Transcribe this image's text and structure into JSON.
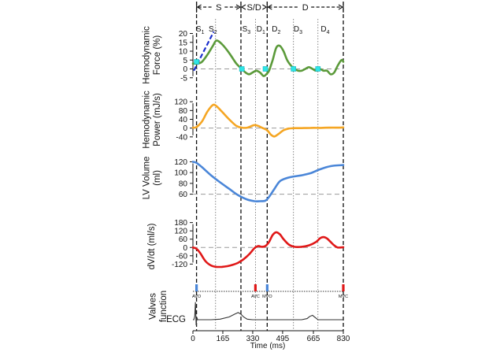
{
  "chart_data": {
    "type": "line",
    "xlabel": "Time (ms)",
    "x_ticks": [
      0,
      165,
      330,
      495,
      665,
      830
    ],
    "x_range": [
      0,
      830
    ],
    "phases": [
      {
        "label": "S",
        "start": 20,
        "end": 265
      },
      {
        "label": "S/D",
        "start": 265,
        "end": 410
      },
      {
        "label": "D",
        "start": 410,
        "end": 830
      }
    ],
    "subphases": [
      {
        "label": "S1",
        "x": 40
      },
      {
        "label": "S2",
        "x": 110
      },
      {
        "label": "S3",
        "x": 295
      },
      {
        "label": "D1",
        "x": 375
      },
      {
        "label": "D2",
        "x": 460
      },
      {
        "label": "D3",
        "x": 580
      },
      {
        "label": "D4",
        "x": 730
      }
    ],
    "phase_boundaries": [
      20,
      265,
      410
    ],
    "subphase_boundaries": [
      125,
      345,
      555,
      690
    ],
    "panels": [
      {
        "ylabel": "Hemodynamic Force (%)",
        "yticks": [
          -5,
          0,
          5,
          10,
          15,
          20
        ],
        "ylim": [
          -6,
          22
        ],
        "zero_line": 0,
        "color": "#5b9a3a",
        "series": {
          "x": [
            0,
            25,
            50,
            80,
            110,
            130,
            160,
            200,
            240,
            270,
            290,
            310,
            330,
            350,
            370,
            390,
            405,
            420,
            440,
            460,
            480,
            500,
            520,
            540,
            560,
            580,
            600,
            620,
            640,
            660,
            680,
            700,
            720,
            740,
            760,
            780,
            800,
            820,
            830
          ],
          "y": [
            3,
            3,
            4,
            8,
            13,
            16,
            14,
            9,
            3,
            0,
            -2,
            -3,
            -2,
            -1,
            -2,
            -4,
            -3,
            -1,
            5,
            12,
            13,
            10,
            5,
            2,
            0,
            -1,
            -1,
            0,
            1,
            0,
            -1,
            0,
            -1,
            -1,
            -3,
            -2,
            2,
            5,
            4
          ]
        },
        "markers": [
          {
            "x": 20,
            "y": 4
          },
          {
            "x": 270,
            "y": 0
          },
          {
            "x": 400,
            "y": 0
          },
          {
            "x": 555,
            "y": 0
          },
          {
            "x": 690,
            "y": 0
          }
        ],
        "tangent": {
          "x1": 5,
          "y1": -1,
          "x2": 115,
          "y2": 21
        }
      },
      {
        "ylabel": "Hemodynamic Power (mJ/s)",
        "yticks": [
          -40,
          0,
          40,
          80,
          120
        ],
        "ylim": [
          -55,
          135
        ],
        "zero_line": 0,
        "color": "#f5a623",
        "series": {
          "x": [
            0,
            20,
            50,
            80,
            110,
            130,
            160,
            200,
            240,
            270,
            300,
            320,
            340,
            360,
            380,
            410,
            430,
            450,
            470,
            500,
            530,
            560,
            600,
            650,
            700,
            750,
            800,
            830
          ],
          "y": [
            2,
            5,
            30,
            75,
            105,
            100,
            75,
            40,
            10,
            2,
            2,
            8,
            14,
            10,
            2,
            -10,
            -30,
            -38,
            -28,
            -10,
            -2,
            0,
            0,
            1,
            1,
            2,
            2,
            3
          ]
        }
      },
      {
        "ylabel": "LV Volume (ml)",
        "yticks": [
          60,
          80,
          100,
          120
        ],
        "ylim": [
          55,
          128
        ],
        "zero_line": 60,
        "color": "#4a86d8",
        "series": {
          "x": [
            0,
            20,
            50,
            100,
            150,
            200,
            250,
            300,
            340,
            370,
            400,
            420,
            450,
            480,
            520,
            560,
            600,
            650,
            700,
            760,
            830
          ],
          "y": [
            120,
            118,
            110,
            95,
            82,
            70,
            58,
            50,
            47,
            47,
            48,
            55,
            70,
            84,
            90,
            93,
            95,
            99,
            106,
            112,
            114
          ]
        }
      },
      {
        "ylabel": "dV/dt (ml/s)",
        "yticks": [
          -120,
          -60,
          0,
          60,
          120,
          180
        ],
        "ylim": [
          -175,
          195
        ],
        "zero_line": 0,
        "color": "#e01818",
        "series": {
          "x": [
            0,
            20,
            40,
            70,
            100,
            130,
            160,
            190,
            220,
            250,
            280,
            310,
            340,
            360,
            380,
            400,
            420,
            440,
            460,
            480,
            500,
            530,
            560,
            600,
            640,
            680,
            700,
            720,
            740,
            760,
            780,
            800,
            830
          ],
          "y": [
            0,
            -10,
            -40,
            -100,
            -130,
            -140,
            -140,
            -135,
            -125,
            -110,
            -85,
            -50,
            -5,
            10,
            5,
            10,
            40,
            90,
            110,
            95,
            60,
            20,
            5,
            5,
            15,
            40,
            65,
            75,
            65,
            40,
            15,
            0,
            2
          ]
        }
      }
    ],
    "valves": {
      "label": "Valves function",
      "events": [
        {
          "name": "AVO",
          "x": 20,
          "color": "#4a86d8"
        },
        {
          "name": "AVC",
          "x": 345,
          "color": "#e01818"
        },
        {
          "name": "MVO",
          "x": 410,
          "color": "#4a86d8"
        },
        {
          "name": "MVC",
          "x": 830,
          "color": "#e01818"
        }
      ]
    },
    "ecg": {
      "label": "ECG",
      "series": {
        "x": [
          0,
          5,
          10,
          14,
          18,
          22,
          26,
          30,
          40,
          60,
          100,
          150,
          200,
          230,
          250,
          265,
          280,
          300,
          330,
          360,
          400,
          450,
          500,
          550,
          600,
          630,
          645,
          660,
          675,
          690,
          720,
          780,
          830
        ],
        "y": [
          0,
          0,
          0.6,
          3.2,
          -1.0,
          0.4,
          0,
          0,
          0,
          0,
          0,
          0.1,
          0.5,
          1.0,
          1.3,
          1.0,
          0.5,
          0.1,
          0,
          0,
          0,
          0,
          0,
          0,
          0,
          0.2,
          0.6,
          0.8,
          0.4,
          0,
          0,
          0,
          0
        ]
      }
    }
  }
}
